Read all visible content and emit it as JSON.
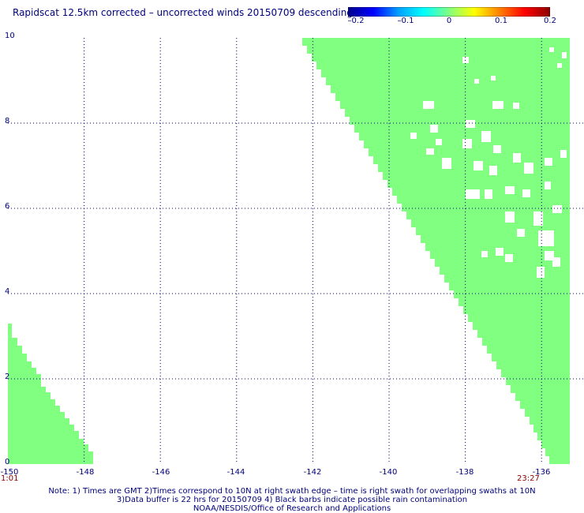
{
  "title": "Rapidscat 12.5km corrected – uncorrected winds 20150709 descending",
  "colorbar": {
    "ticks": [
      "–0.2",
      "–0.1",
      "0",
      "0.1",
      "0.2"
    ],
    "tick_values": [
      -0.2,
      -0.1,
      0,
      0.1,
      0.2
    ],
    "colors": [
      "#00008b",
      "#0000ff",
      "#00a0ff",
      "#00ffff",
      "#80ff80",
      "#ffff00",
      "#ff8000",
      "#ff0000",
      "#8b0000"
    ]
  },
  "axes": {
    "lat_labels": [
      "10",
      "8",
      "6",
      "4",
      "2",
      "0"
    ],
    "lat_values": [
      10,
      8,
      6,
      4,
      2,
      0
    ],
    "lon_labels": [
      "-150",
      "-148",
      "-146",
      "-144",
      "-142",
      "-140",
      "-138",
      "-136"
    ],
    "lon_values": [
      -150,
      -148,
      -146,
      -144,
      -142,
      -140,
      -138,
      -136
    ]
  },
  "swath_color": "#80ff80",
  "times": {
    "left": "1:01",
    "right": "23:27"
  },
  "notes": [
    "Note: 1) Times are GMT 2)Times correspond to 10N at right swath edge – time is right swath for overlapping swaths at 10N",
    "3)Data buffer is 22 hrs for 20150709 4) Black barbs indicate possible rain contamination",
    "NOAA/NESDIS/Office of Research and Applications"
  ]
}
